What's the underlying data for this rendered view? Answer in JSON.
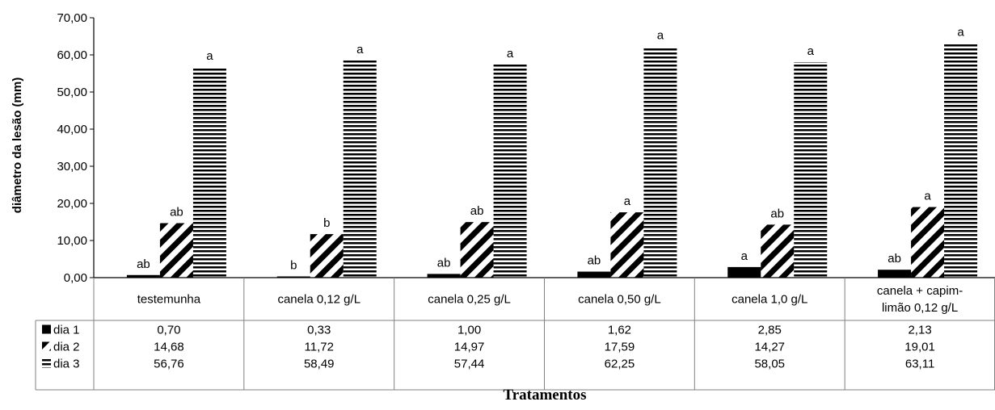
{
  "chart_data": {
    "type": "bar",
    "ylabel": "diâmetro da lesão (mm)",
    "xlabel": "Tratamentos",
    "ylim": [
      0,
      70
    ],
    "yticks": [
      "0,00",
      "10,00",
      "20,00",
      "30,00",
      "40,00",
      "50,00",
      "60,00",
      "70,00"
    ],
    "grid": false,
    "legend": "data-table",
    "categories": [
      [
        "testemunha"
      ],
      [
        "canela 0,12 g/L"
      ],
      [
        "canela 0,25 g/L"
      ],
      [
        "canela 0,50 g/L"
      ],
      [
        "canela 1,0 g/L"
      ],
      [
        "canela + capim-",
        "limão 0,12 g/L"
      ]
    ],
    "series": [
      {
        "name": "dia 1",
        "pattern": "solid",
        "values": [
          0.7,
          0.33,
          1.0,
          1.62,
          2.85,
          2.13
        ],
        "labels": [
          "0,70",
          "0,33",
          "1,00",
          "1,62",
          "2,85",
          "2,13"
        ],
        "letters": [
          "ab",
          "b",
          "ab",
          "ab",
          "a",
          "ab"
        ]
      },
      {
        "name": "dia 2",
        "pattern": "diagonal",
        "values": [
          14.68,
          11.72,
          14.97,
          17.59,
          14.27,
          19.01
        ],
        "labels": [
          "14,68",
          "11,72",
          "14,97",
          "17,59",
          "14,27",
          "19,01"
        ],
        "letters": [
          "ab",
          "b",
          "ab",
          "a",
          "ab",
          "a"
        ]
      },
      {
        "name": "dia 3",
        "pattern": "horizontal",
        "values": [
          56.76,
          58.49,
          57.44,
          62.25,
          58.05,
          63.11
        ],
        "labels": [
          "56,76",
          "58,49",
          "57,44",
          "62,25",
          "58,05",
          "63,11"
        ],
        "letters": [
          "a",
          "a",
          "a",
          "a",
          "a",
          "a"
        ]
      }
    ],
    "colors": {
      "bar": "#000000",
      "background": "#ffffff",
      "axis": "#000000",
      "table_line": "#808080"
    }
  }
}
